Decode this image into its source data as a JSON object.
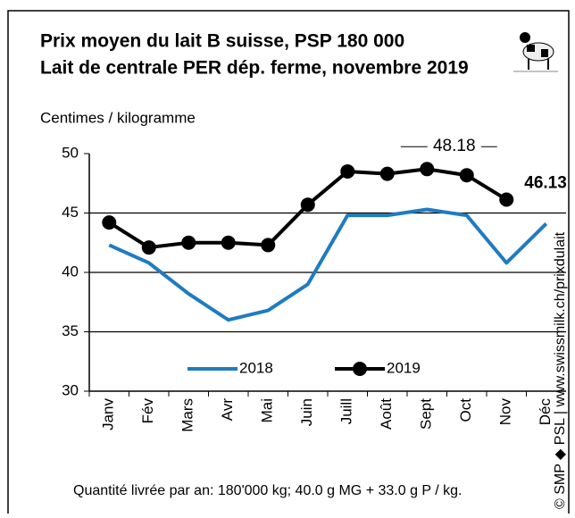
{
  "chart_data": {
    "type": "line",
    "title": "Prix moyen du lait B suisse, PSP 180 000",
    "subtitle": "Lait de centrale PER dép. ferme, novembre 2019",
    "y_label": "Centimes / kilogramme",
    "footnote": "Quantité livrée par an: 180'000 kg; 40.0 g MG + 33.0 g P / kg.",
    "source": "© SMP ◆ PSL | www.swissmilk.ch/prixdulait",
    "categories": [
      "Janv",
      "Fév",
      "Mars",
      "Avr",
      "Mai",
      "Juin",
      "Juill",
      "Août",
      "Sept",
      "Oct",
      "Nov",
      "Déc"
    ],
    "series": [
      {
        "name": "2018",
        "color": "#1f7bc1",
        "markers": false,
        "values": [
          42.3,
          40.8,
          38.2,
          36.0,
          36.8,
          39.0,
          44.8,
          44.8,
          45.3,
          44.8,
          40.8,
          44.1
        ]
      },
      {
        "name": "2019",
        "color": "#000000",
        "markers": true,
        "values": [
          44.2,
          42.1,
          42.5,
          42.5,
          42.3,
          45.7,
          48.5,
          48.3,
          48.7,
          48.18,
          46.13,
          null
        ],
        "value_labels": [
          null,
          null,
          null,
          null,
          null,
          null,
          null,
          null,
          null,
          "48.18",
          "46.13",
          null
        ]
      }
    ],
    "ylim": [
      30,
      50
    ],
    "yticks": [
      30,
      35,
      40,
      45,
      50
    ],
    "grid": true
  }
}
